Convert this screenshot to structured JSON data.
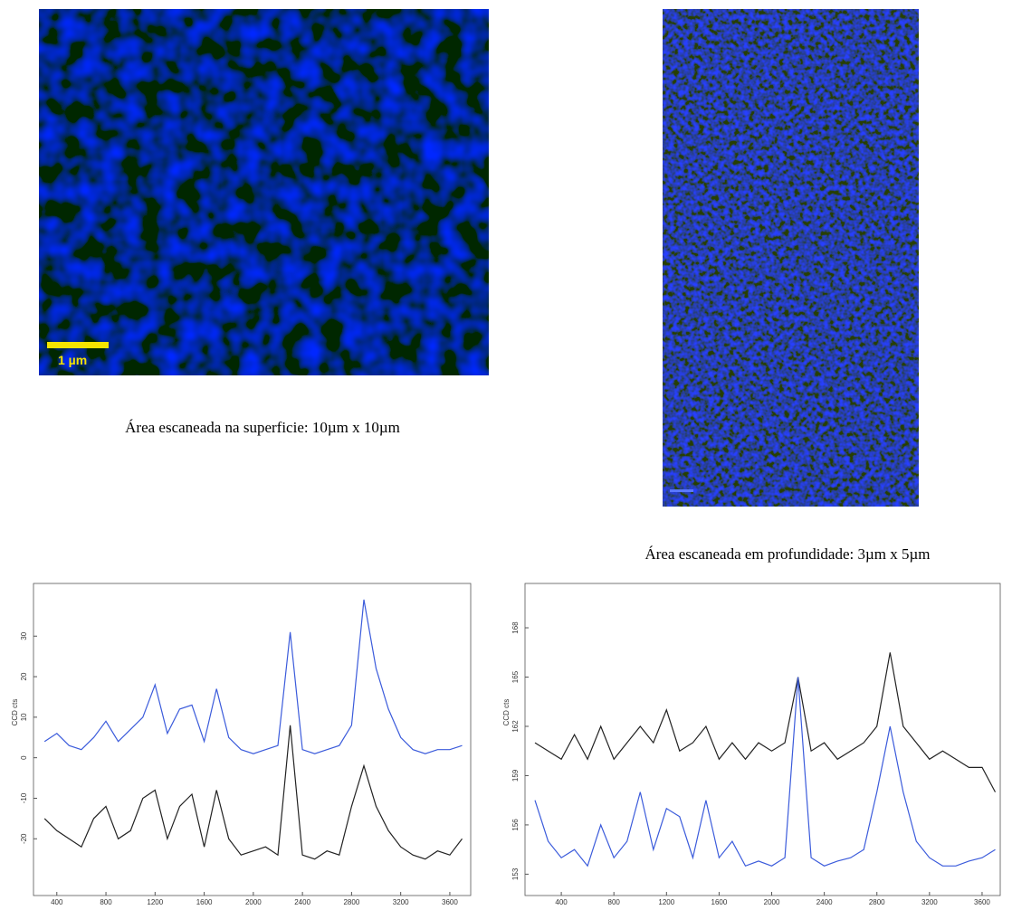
{
  "images": [
    {
      "scale_label": "1 µm",
      "caption": "Área escaneada na superficie: 10µm x 10µm"
    },
    {
      "caption": "Área escaneada em profundidade: 3µm x 5µm"
    }
  ],
  "chart_data": [
    {
      "type": "line",
      "ylabel": "CCD cts",
      "x": [
        300,
        400,
        500,
        600,
        700,
        800,
        900,
        1000,
        1100,
        1200,
        1300,
        1400,
        1500,
        1600,
        1700,
        1800,
        1900,
        2000,
        2100,
        2200,
        2300,
        2400,
        2500,
        2600,
        2700,
        2800,
        2900,
        3000,
        3100,
        3200,
        3300,
        3400,
        3500,
        3600,
        3700
      ],
      "xlim": [
        210,
        3770
      ],
      "xticks": [
        400,
        800,
        1200,
        1600,
        2000,
        2400,
        2800,
        3200,
        3600
      ],
      "ylim": [
        -34,
        43
      ],
      "yticks": [
        -20,
        -10,
        0,
        10,
        20,
        30
      ],
      "series": [
        {
          "color": "#3b5bdb",
          "values": [
            4,
            6,
            3,
            2,
            5,
            9,
            4,
            7,
            10,
            18,
            6,
            12,
            13,
            4,
            17,
            5,
            2,
            1,
            2,
            3,
            31,
            2,
            1,
            2,
            3,
            8,
            39,
            22,
            12,
            5,
            2,
            1,
            2,
            2,
            3
          ]
        },
        {
          "color": "#222222",
          "values": [
            -15,
            -18,
            -20,
            -22,
            -15,
            -12,
            -20,
            -18,
            -10,
            -8,
            -20,
            -12,
            -9,
            -22,
            -8,
            -20,
            -24,
            -23,
            -22,
            -24,
            8,
            -24,
            -25,
            -23,
            -24,
            -12,
            -2,
            -12,
            -18,
            -22,
            -24,
            -25,
            -23,
            -24,
            -20
          ]
        }
      ]
    },
    {
      "type": "line",
      "ylabel": "CCD cts",
      "x": [
        200,
        300,
        400,
        500,
        600,
        700,
        800,
        900,
        1000,
        1100,
        1200,
        1300,
        1400,
        1500,
        1600,
        1700,
        1800,
        1900,
        2000,
        2100,
        2200,
        2300,
        2400,
        2500,
        2600,
        2700,
        2800,
        2900,
        3000,
        3100,
        3200,
        3300,
        3400,
        3500,
        3600,
        3700
      ],
      "xlim": [
        124,
        3738
      ],
      "xticks": [
        400,
        800,
        1200,
        1600,
        2000,
        2400,
        2800,
        3200,
        3600
      ],
      "ylim": [
        151.7,
        170.7
      ],
      "yticks": [
        153,
        156,
        159,
        162,
        165,
        168
      ],
      "series": [
        {
          "color": "#222222",
          "values": [
            161,
            160.5,
            160,
            161.5,
            160,
            162,
            160,
            161,
            162,
            161,
            163,
            160.5,
            161,
            162,
            160,
            161,
            160,
            161,
            160.5,
            161,
            165,
            160.5,
            161,
            160,
            160.5,
            161,
            162,
            166.5,
            162,
            161,
            160,
            160.5,
            160,
            159.5,
            159.5,
            158
          ]
        },
        {
          "color": "#3b5bdb",
          "values": [
            157.5,
            155,
            154,
            154.5,
            153.5,
            156,
            154,
            155,
            158,
            154.5,
            157,
            156.5,
            154,
            157.5,
            154,
            155,
            153.5,
            153.8,
            153.5,
            154,
            165,
            154,
            153.5,
            153.8,
            154,
            154.5,
            158,
            162,
            158,
            155,
            154,
            153.5,
            153.5,
            153.8,
            154,
            154.5
          ]
        }
      ]
    }
  ]
}
